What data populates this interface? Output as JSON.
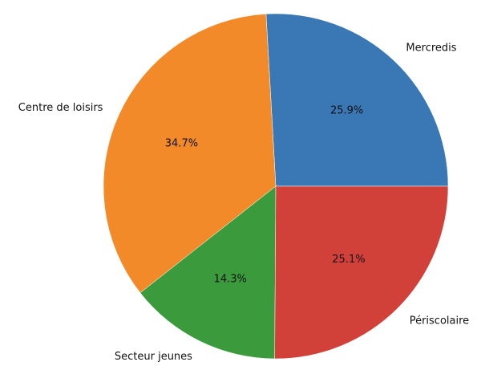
{
  "chart_data": {
    "type": "pie",
    "categories": [
      "Mercredis",
      "Centre de loisirs",
      "Secteur jeunes",
      "Périscolaire"
    ],
    "values": [
      25.9,
      34.7,
      14.3,
      25.1
    ],
    "value_labels": [
      "25.9%",
      "34.7%",
      "14.3%",
      "25.1%"
    ],
    "colors": [
      "#3a78b5",
      "#f28a2a",
      "#3a9a3c",
      "#d2403a"
    ]
  }
}
